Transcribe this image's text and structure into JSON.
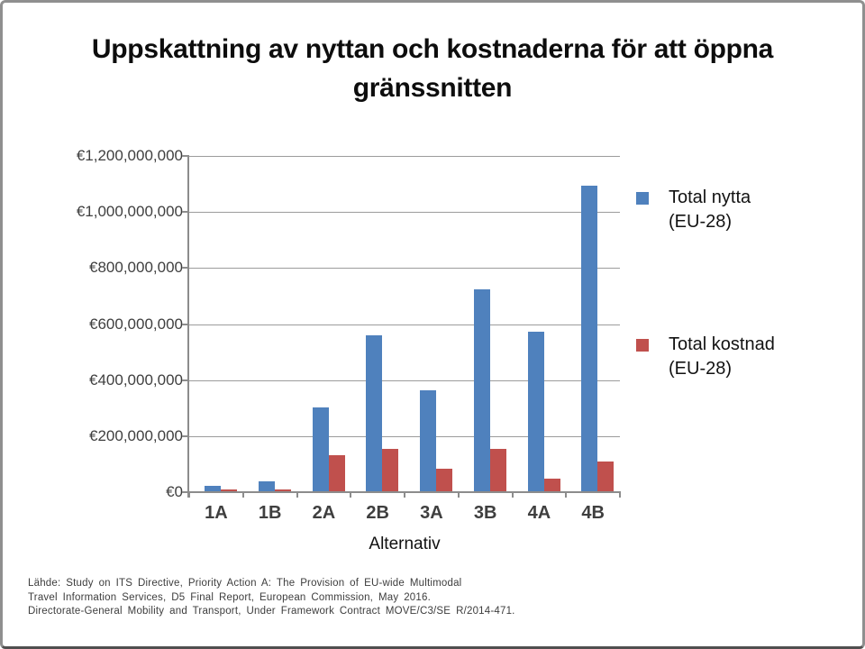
{
  "title": {
    "line1": "Uppskattning av nyttan och kostnaderna för att öppna",
    "line2": "gränssnitten"
  },
  "chart_data": {
    "type": "bar",
    "title": "Uppskattning av nyttan och kostnaderna för att öppna gränssnitten",
    "categories": [
      "1A",
      "1B",
      "2A",
      "2B",
      "3A",
      "3B",
      "4A",
      "4B"
    ],
    "series": [
      {
        "name": "Total nytta (EU-28)",
        "color": "#4f81bd",
        "values": [
          20000000,
          35000000,
          300000000,
          555000000,
          360000000,
          720000000,
          570000000,
          1090000000
        ]
      },
      {
        "name": "Total kostnad (EU-28)",
        "color": "#c0504d",
        "values": [
          8000000,
          8000000,
          130000000,
          150000000,
          80000000,
          150000000,
          45000000,
          105000000
        ]
      }
    ],
    "xlabel": "Alternativ",
    "ylabel": "",
    "ylim": [
      0,
      1200000000
    ],
    "ytick_step": 200000000,
    "ytick_labels": [
      "€0",
      "€200,000,000",
      "€400,000,000",
      "€600,000,000",
      "€800,000,000",
      "€1,000,000,000",
      "€1,200,000,000"
    ],
    "grid": true,
    "legend_position": "right"
  },
  "legend": {
    "items": [
      {
        "line1": "Total nytta",
        "line2": "(EU-28)",
        "color": "#4f81bd"
      },
      {
        "line1": "Total kostnad",
        "line2": "(EU-28)",
        "color": "#c0504d"
      }
    ]
  },
  "source": {
    "line1": "Lähde: Study on ITS Directive, Priority Action A: The Provision of EU-wide Multimodal",
    "line2": "Travel Information  Services, D5 Final Report, European Commission,  May 2016.",
    "line3": "Directorate-General  Mobility and Transport, Under Framework Contract MOVE/C3/SE R/2014-471."
  },
  "colors": {
    "benefit_blue": "#4f81bd",
    "cost_red": "#c0504d",
    "gridline": "#9c9c9c",
    "axis": "#8c8c8c",
    "tick_text": "#3f3f3f"
  }
}
